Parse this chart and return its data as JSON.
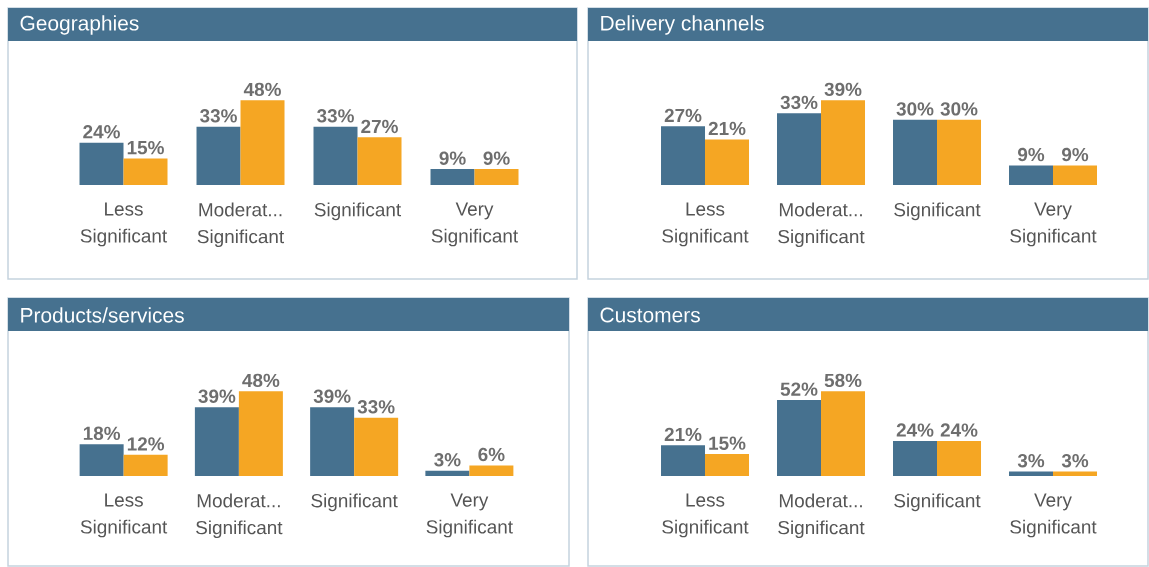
{
  "chart_data": [
    {
      "type": "bar",
      "title": "Geographies",
      "tick_labels": "x",
      "categories": [
        "Less Significant",
        "Moderat... Significant",
        "Significant",
        "Very Significant"
      ],
      "series": [
        {
          "color": "#46718f",
          "values": [
            24,
            33,
            33,
            9
          ],
          "value_labels": [
            "24%",
            "33%",
            "33%",
            "9%"
          ]
        },
        {
          "color": "#f5a623",
          "values": [
            15,
            48,
            27,
            9
          ],
          "value_labels": [
            "15%",
            "48%",
            "27%",
            "9%"
          ]
        }
      ]
    },
    {
      "type": "bar",
      "title": "Delivery channels",
      "tick_labels": "x",
      "categories": [
        "Less Significant",
        "Moderat... Significant",
        "Significant",
        "Very Significant"
      ],
      "series": [
        {
          "color": "#46718f",
          "values": [
            27,
            33,
            30,
            9
          ],
          "value_labels": [
            "27%",
            "33%",
            "30%",
            "9%"
          ]
        },
        {
          "color": "#f5a623",
          "values": [
            21,
            39,
            30,
            9
          ],
          "value_labels": [
            "21%",
            "39%",
            "30%",
            "9%"
          ]
        }
      ]
    },
    {
      "type": "bar",
      "title": "Products/services",
      "tick_labels": "x",
      "categories": [
        "Less Significant",
        "Moderat... Significant",
        "Significant",
        "Very Significant"
      ],
      "series": [
        {
          "color": "#46718f",
          "values": [
            18,
            39,
            39,
            3
          ],
          "value_labels": [
            "18%",
            "39%",
            "39%",
            "3%"
          ]
        },
        {
          "color": "#f5a623",
          "values": [
            12,
            48,
            33,
            6
          ],
          "value_labels": [
            "12%",
            "48%",
            "33%",
            "6%"
          ]
        }
      ]
    },
    {
      "type": "bar",
      "title": "Customers",
      "tick_labels": "x",
      "categories": [
        "Less Significant",
        "Moderat... Significant",
        "Significant",
        "Very Significant"
      ],
      "series": [
        {
          "color": "#46718f",
          "values": [
            21,
            52,
            24,
            3
          ],
          "value_labels": [
            "21%",
            "52%",
            "24%",
            "3%"
          ]
        },
        {
          "color": "#f5a623",
          "values": [
            15,
            58,
            24,
            3
          ],
          "value_labels": [
            "15%",
            "58%",
            "24%",
            "3%"
          ]
        }
      ]
    }
  ]
}
